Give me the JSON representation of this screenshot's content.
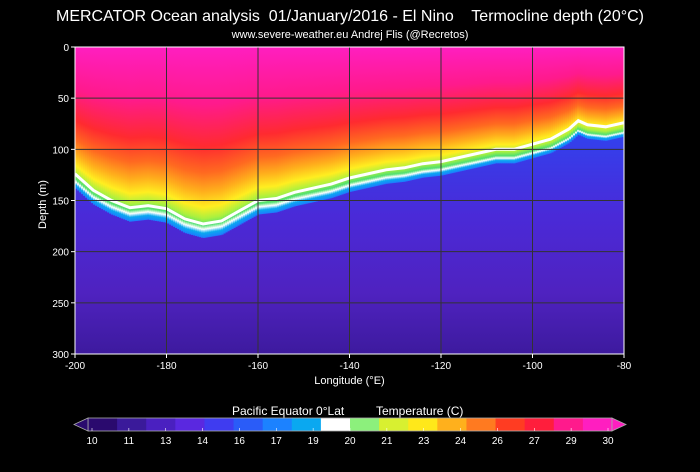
{
  "header": {
    "title": "MERCATOR Ocean analysis  01/January/2016 - El Nino    Termocline depth (20°C)",
    "subtitle": "www.severe-weather.eu   Andrej Flis (@Recretos)"
  },
  "chart_data": {
    "type": "heatmap",
    "xlabel": "Longitude (°E)",
    "ylabel": "Depth (m)",
    "xlim": [
      -200,
      -80
    ],
    "ylim": [
      0,
      300
    ],
    "y_inverted": true,
    "x_ticks": [
      -200,
      -180,
      -160,
      -140,
      -120,
      -100,
      -80
    ],
    "y_ticks": [
      0,
      50,
      100,
      150,
      200,
      250,
      300
    ],
    "grid": true,
    "contour_20C": {
      "x": [
        -200,
        -196,
        -192,
        -188,
        -184,
        -180,
        -176,
        -172,
        -168,
        -164,
        -160,
        -156,
        -152,
        -148,
        -144,
        -140,
        -136,
        -132,
        -128,
        -124,
        -120,
        -116,
        -112,
        -108,
        -104,
        -100,
        -96,
        -92,
        -90,
        -88,
        -84,
        -80
      ],
      "depth": [
        124,
        140,
        150,
        157,
        155,
        158,
        168,
        173,
        170,
        160,
        150,
        148,
        142,
        138,
        134,
        128,
        124,
        120,
        118,
        114,
        112,
        108,
        104,
        100,
        100,
        95,
        90,
        80,
        72,
        76,
        78,
        74
      ]
    },
    "colorbar": {
      "title_left": "Pacific Equator 0°Lat",
      "title_right": "Temperature (C)",
      "labels": [
        "10",
        "11",
        "13",
        "14",
        "16",
        "17",
        "19",
        "20",
        "21",
        "23",
        "24",
        "26",
        "27",
        "29",
        "30"
      ],
      "min": 10,
      "max": 30,
      "colors": [
        "#2a0a6e",
        "#3a1a9a",
        "#4a20c0",
        "#5a28e0",
        "#3f3cf0",
        "#2a5cf8",
        "#1c82ff",
        "#0aa8f0",
        "#ffffff",
        "#8cf07c",
        "#d8f030",
        "#ffe81a",
        "#ffb01c",
        "#ff7a20",
        "#ff3c22",
        "#ff1e3c",
        "#ff1a8c",
        "#ff1ec0"
      ]
    }
  }
}
